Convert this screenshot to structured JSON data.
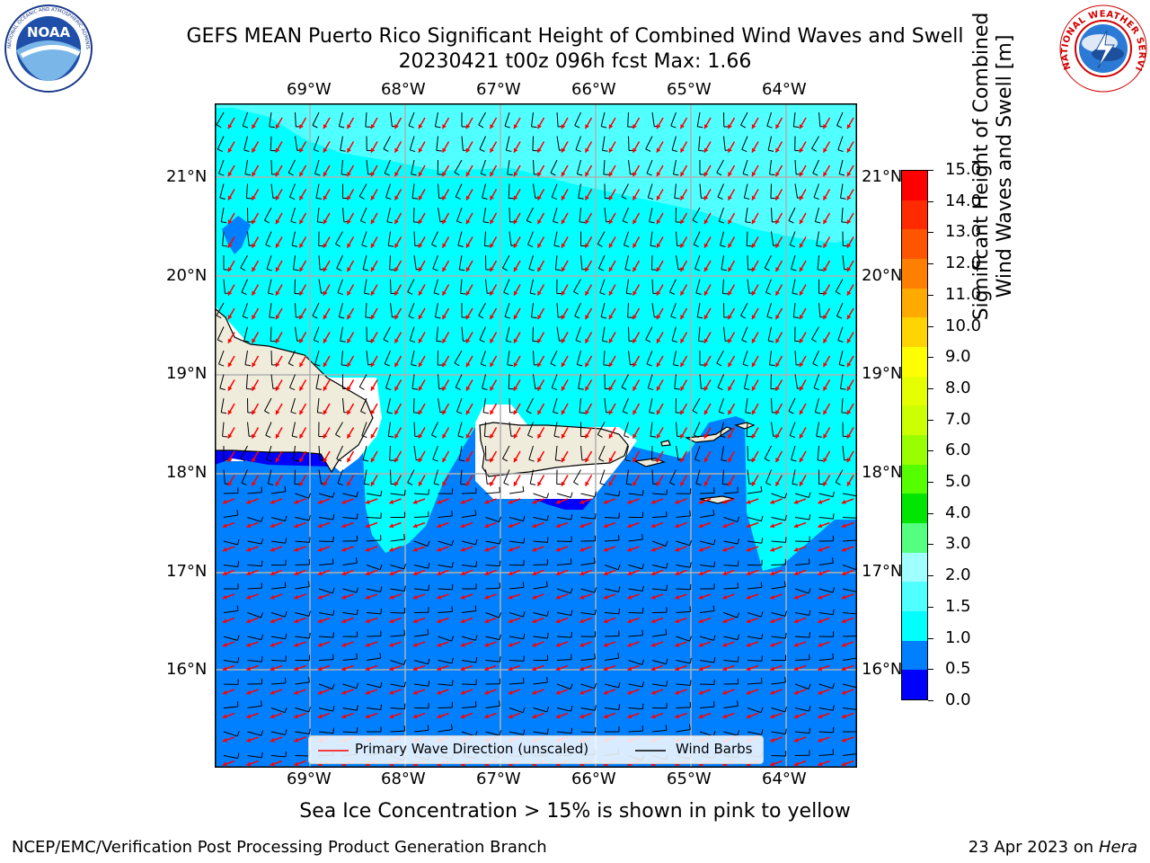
{
  "header": {
    "title_line1": "GEFS MEAN Puerto Rico Significant Height of Combined Wind Waves and Swell",
    "title_line2": "20230421 t00z 096h fcst   Max: 1.66"
  },
  "logos": {
    "left": "NOAA",
    "left_ring": "NATIONAL OCEANIC AND ATMOSPHERIC ADMINISTRATION · U.S. DEPARTMENT OF COMMERCE",
    "right_ring": "NATIONAL WEATHER SERVICE"
  },
  "map": {
    "lon_ticks": [
      "69°W",
      "68°W",
      "67°W",
      "66°W",
      "65°W",
      "64°W"
    ],
    "lat_ticks": [
      "21°N",
      "20°N",
      "19°N",
      "18°N",
      "17°N",
      "16°N"
    ],
    "colors": {
      "land": "#efecdc",
      "ice_free_white": "#ffffff",
      "bin_0_5": "#0000ff",
      "bin_0_5_1_0": "#0080ff",
      "bin_1_0_1_5": "#00ffff",
      "bin_1_5_2_0": "#50ffff",
      "wave_arrow": "#ff0000",
      "wind_barb": "#000000",
      "grid": "#b0b0b0"
    }
  },
  "legend": {
    "wave_label": "Primary Wave Direction (unscaled)",
    "wind_label": "Wind Barbs"
  },
  "colorbar": {
    "label_line1": "Significant Height of Combined",
    "label_line2": "Wind Waves and Swell [m]",
    "ticks": [
      "15.0",
      "14.0",
      "13.0",
      "12.0",
      "11.0",
      "10.0",
      "9.0",
      "8.0",
      "7.0",
      "6.0",
      "5.0",
      "4.0",
      "3.0",
      "2.0",
      "1.5",
      "1.0",
      "0.5",
      "0.0"
    ],
    "segment_colors": [
      "#ff0000",
      "#ff2a00",
      "#ff5500",
      "#ff8000",
      "#ffaa00",
      "#ffd400",
      "#ffff00",
      "#e6ff00",
      "#ccff00",
      "#99ff00",
      "#55ff00",
      "#00e600",
      "#55ff80",
      "#a0ffff",
      "#50ffff",
      "#00ffff",
      "#0080ff",
      "#0000ff"
    ]
  },
  "caption": "Sea Ice Concentration > 15% is shown in pink to yellow",
  "footer": {
    "left": "NCEP/EMC/Verification Post Processing Product Generation Branch",
    "date": "23 Apr 2023 on ",
    "machine": "Hera"
  }
}
